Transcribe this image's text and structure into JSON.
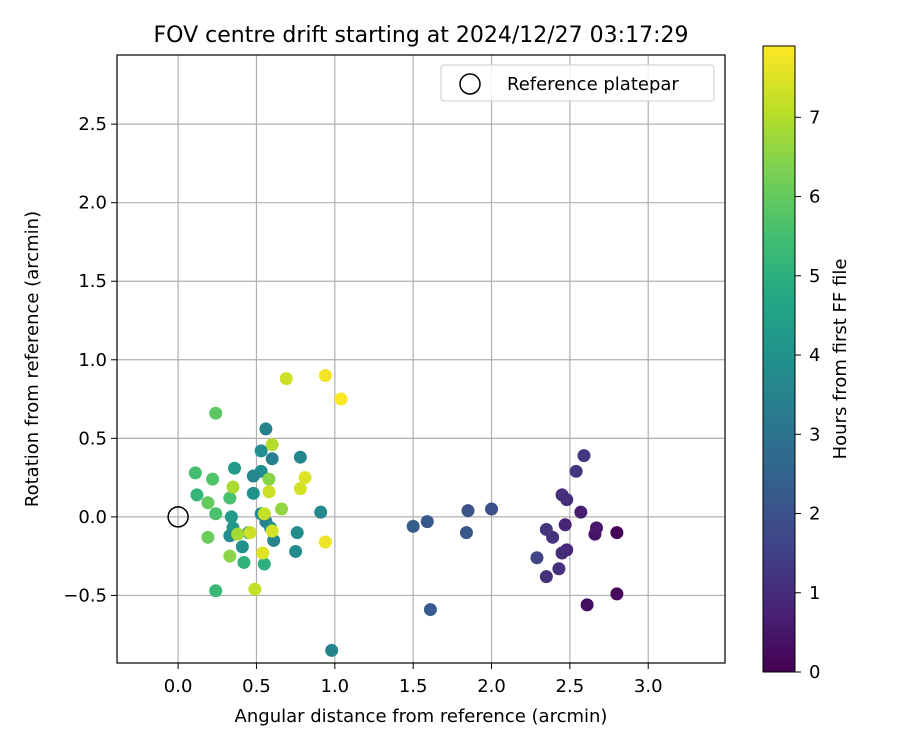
{
  "chart_data": {
    "type": "scatter",
    "title": "FOV centre drift starting at 2024/12/27 03:17:29",
    "xlabel": "Angular distance from reference (arcmin)",
    "ylabel": "Rotation from reference (arcmin)",
    "xlim": [
      -0.39,
      3.49
    ],
    "ylim": [
      -0.93,
      2.94
    ],
    "xticks": [
      "0.0",
      "0.5",
      "1.0",
      "1.5",
      "2.0",
      "2.5",
      "3.0"
    ],
    "xtick_values": [
      0,
      0.5,
      1,
      1.5,
      2,
      2.5,
      3
    ],
    "yticks": [
      "−0.5",
      "0.0",
      "0.5",
      "1.0",
      "1.5",
      "2.0",
      "2.5"
    ],
    "ytick_values": [
      -0.5,
      0,
      0.5,
      1,
      1.5,
      2,
      2.5
    ],
    "grid": true,
    "legend": {
      "position": "top-right",
      "entries": [
        "Reference platepar"
      ]
    },
    "reference_point": {
      "x": 0.0,
      "y": 0.0
    },
    "colorbar": {
      "label": "Hours from first FF file",
      "range": [
        0,
        7.9
      ],
      "ticks": [
        "0",
        "1",
        "2",
        "3",
        "4",
        "5",
        "6",
        "7"
      ],
      "tick_values": [
        0,
        1,
        2,
        3,
        4,
        5,
        6,
        7
      ],
      "colormap": "viridis"
    },
    "points": [
      {
        "x": 2.8,
        "y": -0.1,
        "hours": 0.05
      },
      {
        "x": 2.8,
        "y": -0.49,
        "hours": 0.15
      },
      {
        "x": 2.61,
        "y": -0.56,
        "hours": 0.3
      },
      {
        "x": 2.66,
        "y": -0.11,
        "hours": 0.4
      },
      {
        "x": 2.67,
        "y": -0.07,
        "hours": 0.55
      },
      {
        "x": 2.57,
        "y": 0.03,
        "hours": 0.65
      },
      {
        "x": 2.47,
        "y": -0.05,
        "hours": 0.8
      },
      {
        "x": 2.48,
        "y": -0.21,
        "hours": 0.9
      },
      {
        "x": 2.45,
        "y": -0.23,
        "hours": 1.0
      },
      {
        "x": 2.43,
        "y": -0.33,
        "hours": 1.05
      },
      {
        "x": 2.35,
        "y": -0.38,
        "hours": 1.1
      },
      {
        "x": 2.39,
        "y": -0.13,
        "hours": 1.15
      },
      {
        "x": 2.35,
        "y": -0.08,
        "hours": 1.2
      },
      {
        "x": 2.45,
        "y": 0.14,
        "hours": 1.1
      },
      {
        "x": 2.48,
        "y": 0.11,
        "hours": 1.0
      },
      {
        "x": 2.54,
        "y": 0.29,
        "hours": 1.2
      },
      {
        "x": 2.59,
        "y": 0.39,
        "hours": 1.3
      },
      {
        "x": 2.29,
        "y": -0.26,
        "hours": 1.6
      },
      {
        "x": 2.0,
        "y": 0.05,
        "hours": 1.9
      },
      {
        "x": 1.85,
        "y": 0.04,
        "hours": 2.0
      },
      {
        "x": 1.84,
        "y": -0.1,
        "hours": 2.1
      },
      {
        "x": 1.59,
        "y": -0.03,
        "hours": 2.2
      },
      {
        "x": 1.5,
        "y": -0.06,
        "hours": 2.3
      },
      {
        "x": 1.61,
        "y": -0.59,
        "hours": 2.25
      },
      {
        "x": 0.98,
        "y": -0.85,
        "hours": 3.5
      },
      {
        "x": 0.91,
        "y": 0.03,
        "hours": 3.7
      },
      {
        "x": 0.78,
        "y": 0.38,
        "hours": 3.6
      },
      {
        "x": 0.76,
        "y": -0.1,
        "hours": 3.8
      },
      {
        "x": 0.75,
        "y": -0.22,
        "hours": 3.8
      },
      {
        "x": 0.56,
        "y": 0.56,
        "hours": 3.5
      },
      {
        "x": 0.6,
        "y": 0.37,
        "hours": 3.4
      },
      {
        "x": 0.53,
        "y": 0.42,
        "hours": 3.9
      },
      {
        "x": 0.53,
        "y": 0.29,
        "hours": 3.9
      },
      {
        "x": 0.48,
        "y": 0.26,
        "hours": 3.6
      },
      {
        "x": 0.48,
        "y": 0.15,
        "hours": 4.0
      },
      {
        "x": 0.36,
        "y": 0.31,
        "hours": 4.2
      },
      {
        "x": 0.53,
        "y": 0.02,
        "hours": 3.7
      },
      {
        "x": 0.56,
        "y": -0.03,
        "hours": 3.5
      },
      {
        "x": 0.59,
        "y": -0.07,
        "hours": 3.9
      },
      {
        "x": 0.61,
        "y": -0.15,
        "hours": 3.6
      },
      {
        "x": 0.34,
        "y": 0.0,
        "hours": 4.3
      },
      {
        "x": 0.35,
        "y": -0.07,
        "hours": 4.2
      },
      {
        "x": 0.33,
        "y": -0.12,
        "hours": 3.8
      },
      {
        "x": 0.41,
        "y": -0.19,
        "hours": 4.0
      },
      {
        "x": 0.45,
        "y": -0.1,
        "hours": 4.5
      },
      {
        "x": 0.55,
        "y": -0.3,
        "hours": 5.0
      },
      {
        "x": 0.42,
        "y": -0.29,
        "hours": 5.1
      },
      {
        "x": 0.24,
        "y": -0.47,
        "hours": 5.3
      },
      {
        "x": 0.33,
        "y": 0.12,
        "hours": 5.6
      },
      {
        "x": 0.12,
        "y": 0.14,
        "hours": 5.2
      },
      {
        "x": 0.11,
        "y": 0.28,
        "hours": 5.5
      },
      {
        "x": 0.22,
        "y": 0.24,
        "hours": 5.7
      },
      {
        "x": 0.19,
        "y": 0.09,
        "hours": 6.0
      },
      {
        "x": 0.24,
        "y": 0.02,
        "hours": 5.6
      },
      {
        "x": 0.19,
        "y": -0.13,
        "hours": 6.1
      },
      {
        "x": 0.33,
        "y": -0.25,
        "hours": 6.5
      },
      {
        "x": 0.24,
        "y": 0.66,
        "hours": 5.9
      },
      {
        "x": 0.58,
        "y": 0.24,
        "hours": 6.5
      },
      {
        "x": 0.66,
        "y": 0.05,
        "hours": 6.6
      },
      {
        "x": 0.38,
        "y": -0.11,
        "hours": 6.8
      },
      {
        "x": 0.35,
        "y": 0.19,
        "hours": 6.9
      },
      {
        "x": 0.6,
        "y": 0.46,
        "hours": 7.0
      },
      {
        "x": 0.58,
        "y": 0.16,
        "hours": 7.3
      },
      {
        "x": 0.6,
        "y": -0.09,
        "hours": 7.4
      },
      {
        "x": 0.55,
        "y": 0.02,
        "hours": 7.2
      },
      {
        "x": 0.54,
        "y": -0.23,
        "hours": 7.5
      },
      {
        "x": 0.49,
        "y": -0.46,
        "hours": 7.2
      },
      {
        "x": 0.46,
        "y": -0.1,
        "hours": 7.3
      },
      {
        "x": 0.78,
        "y": 0.18,
        "hours": 7.4
      },
      {
        "x": 0.81,
        "y": 0.25,
        "hours": 7.5
      },
      {
        "x": 0.69,
        "y": 0.88,
        "hours": 7.3
      },
      {
        "x": 0.94,
        "y": 0.9,
        "hours": 7.75
      },
      {
        "x": 1.04,
        "y": 0.75,
        "hours": 7.85
      },
      {
        "x": 0.94,
        "y": -0.16,
        "hours": 7.7
      }
    ]
  }
}
